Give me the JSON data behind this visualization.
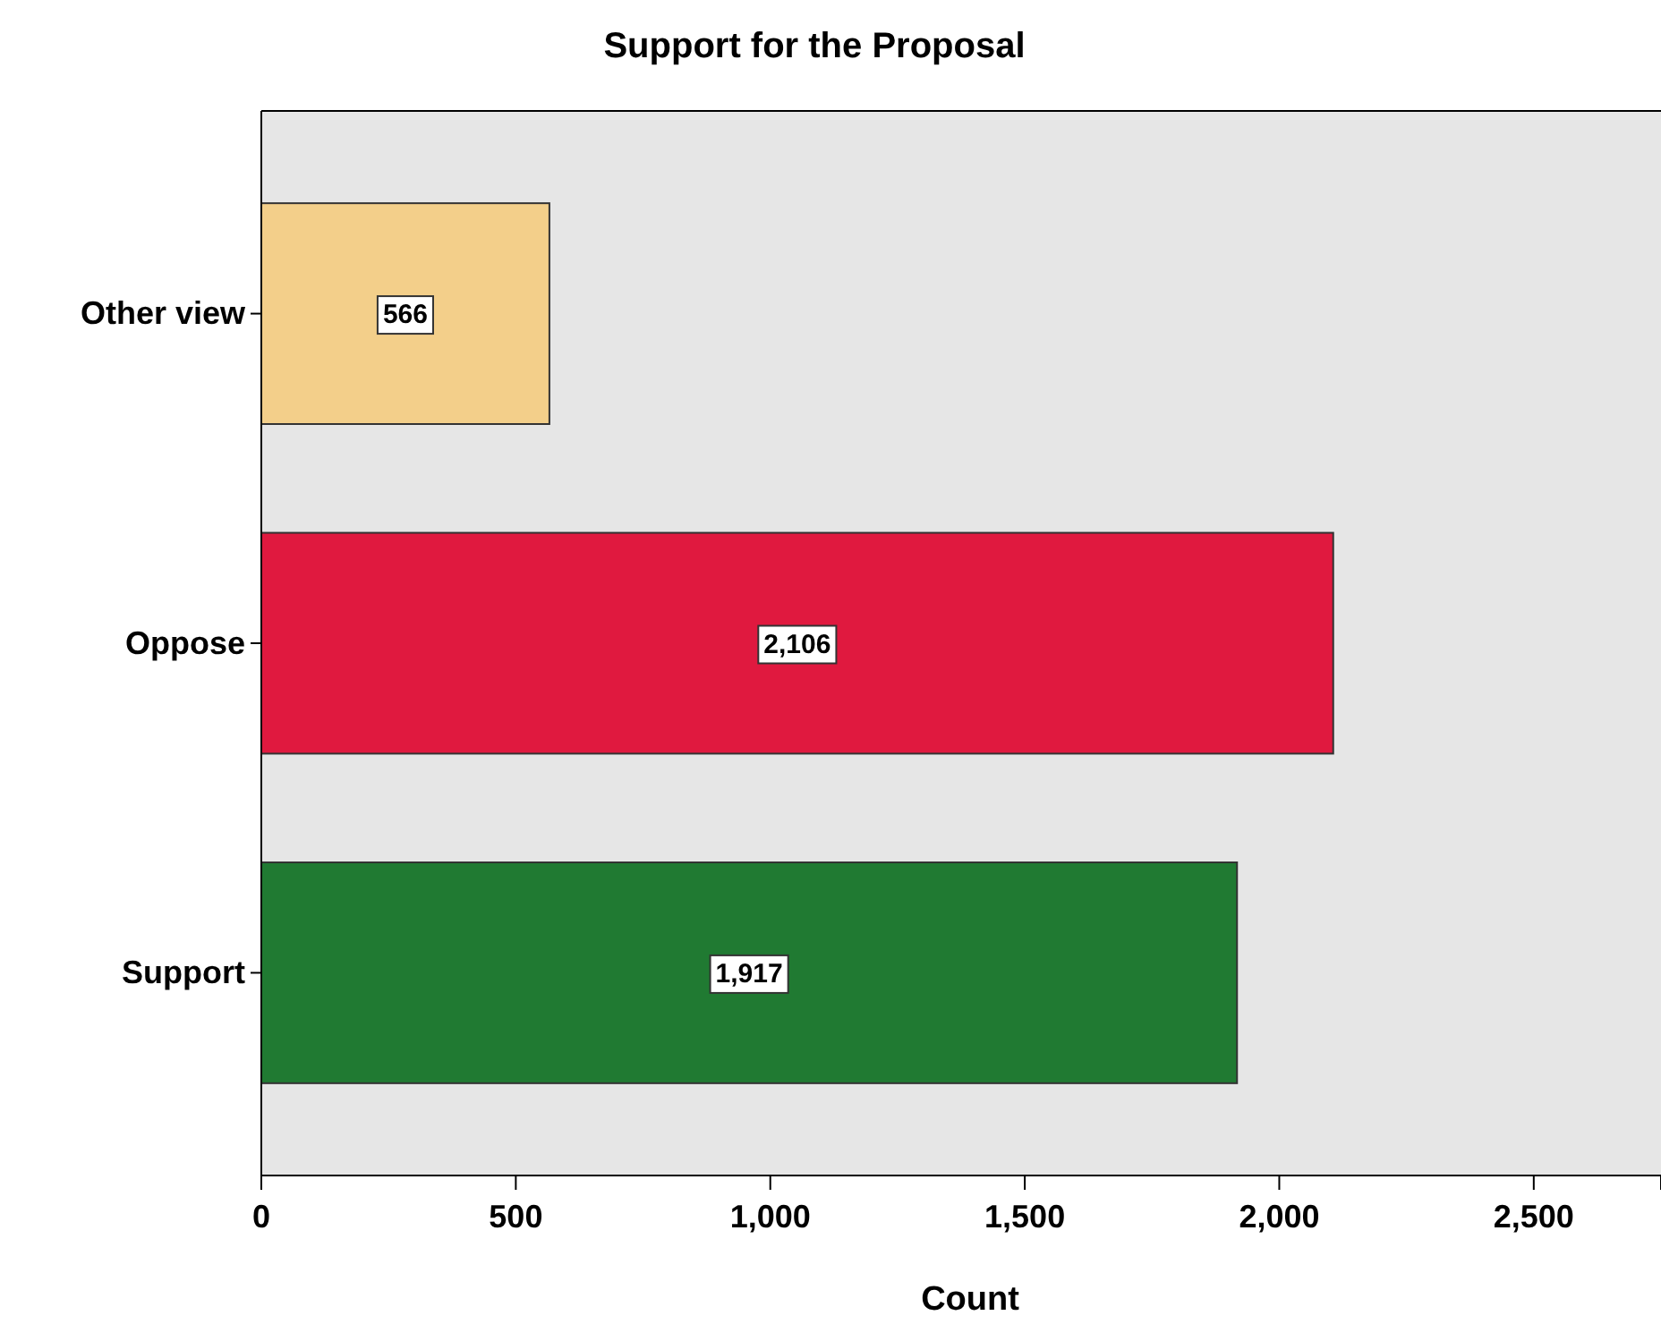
{
  "chart_data": {
    "type": "bar",
    "orientation": "horizontal",
    "title": "Support for the Proposal",
    "xlabel": "Count",
    "categories": [
      "Other view",
      "Oppose",
      "Support"
    ],
    "values": [
      566,
      2106,
      1917
    ],
    "colors": [
      "#f3cf8a",
      "#e0193f",
      "#207a32"
    ],
    "xlim": [
      0,
      2750
    ],
    "xticks": [
      {
        "value": 0,
        "label": "0"
      },
      {
        "value": 500,
        "label": "500"
      },
      {
        "value": 1000,
        "label": "1,000"
      },
      {
        "value": 1500,
        "label": "1,500"
      },
      {
        "value": 2000,
        "label": "2,000"
      },
      {
        "value": 2500,
        "label": "2,500"
      }
    ],
    "value_labels": [
      "566",
      "2,106",
      "1,917"
    ],
    "grid": false
  }
}
